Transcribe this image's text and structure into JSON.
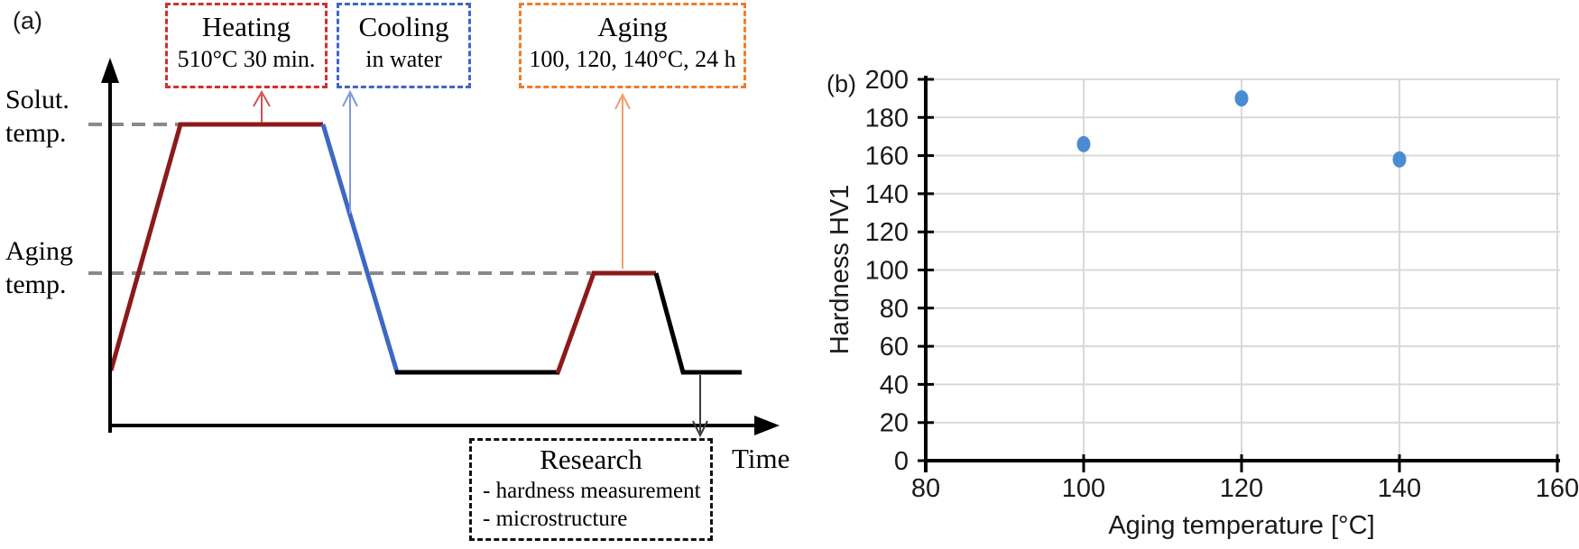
{
  "panel_a": {
    "label": "(a)",
    "heating_box": {
      "title": "Heating",
      "subtitle": "510°C 30 min."
    },
    "cooling_box": {
      "title": "Cooling",
      "subtitle": "in water"
    },
    "aging_box": {
      "title": "Aging",
      "subtitle": "100, 120, 140°C, 24 h"
    },
    "solution_temp_label_line1": "Solut.",
    "solution_temp_label_line2": "temp.",
    "aging_temp_label_line1": "Aging",
    "aging_temp_label_line2": "temp.",
    "time_label": "Time",
    "research_box": {
      "title": "Research",
      "items": [
        "- hardness measurement",
        "- microstructure"
      ]
    },
    "colors": {
      "heating_line": "#8c1a1a",
      "cooling_line": "#3d68c5",
      "hold_line": "#000000",
      "guide_dash": "#8a8a8a",
      "heating_box_border": "#d42e2e",
      "cooling_box_border": "#4365c2",
      "aging_box_border": "#ed7d31",
      "heating_arrow": "#d25050",
      "cooling_arrow": "#7e9ad9",
      "aging_arrow": "#f0a068",
      "research_arrow": "#3a3a3a"
    }
  },
  "panel_b": {
    "label": "(b)"
  },
  "chart_data": {
    "type": "scatter",
    "title": "",
    "xlabel": "Aging temperature [°C]",
    "ylabel": "Hardness HV1",
    "xlim": [
      80,
      160
    ],
    "ylim": [
      0,
      200
    ],
    "xticks": [
      80,
      100,
      120,
      140,
      160
    ],
    "yticks": [
      0,
      20,
      40,
      60,
      80,
      100,
      120,
      140,
      160,
      180,
      200
    ],
    "grid": true,
    "legend_position": "none",
    "series": [
      {
        "name": "Hardness HV1",
        "points": [
          {
            "x": 100,
            "y": 166
          },
          {
            "x": 120,
            "y": 190
          },
          {
            "x": 140,
            "y": 158
          }
        ]
      }
    ],
    "point_color": "#4a8cd3",
    "gridline_color": "#d9d9d9",
    "axis_color": "#000000"
  }
}
